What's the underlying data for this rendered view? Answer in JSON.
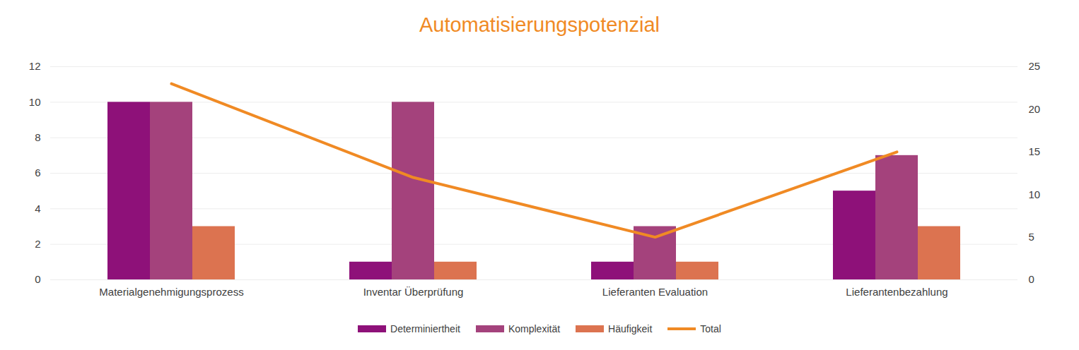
{
  "chart_data": {
    "type": "bar",
    "title": "Automatisierungspotenzial",
    "categories": [
      "Materialgenehmigungsprozess",
      "Inventar Überprüfung",
      "Lieferanten Evaluation",
      "Lieferantenbezahlung"
    ],
    "series": [
      {
        "name": "Determiniertheit",
        "color": "#8E1179",
        "values": [
          10,
          1,
          1,
          5
        ]
      },
      {
        "name": "Komplexität",
        "color": "#A4427C",
        "values": [
          10,
          10,
          3,
          7
        ]
      },
      {
        "name": "Häufigkeit",
        "color": "#DC7350",
        "values": [
          3,
          1,
          1,
          3
        ]
      },
      {
        "name": "Total",
        "color": "#F08A24",
        "type": "line",
        "axis": "y2",
        "values": [
          23,
          12,
          5,
          15
        ]
      }
    ],
    "ylim": [
      0,
      12
    ],
    "yticks": [
      0,
      2,
      4,
      6,
      8,
      10,
      12
    ],
    "y2lim": [
      0,
      25
    ],
    "y2ticks": [
      0,
      5,
      10,
      15,
      20,
      25
    ],
    "grid": true,
    "legend": "bottom"
  }
}
